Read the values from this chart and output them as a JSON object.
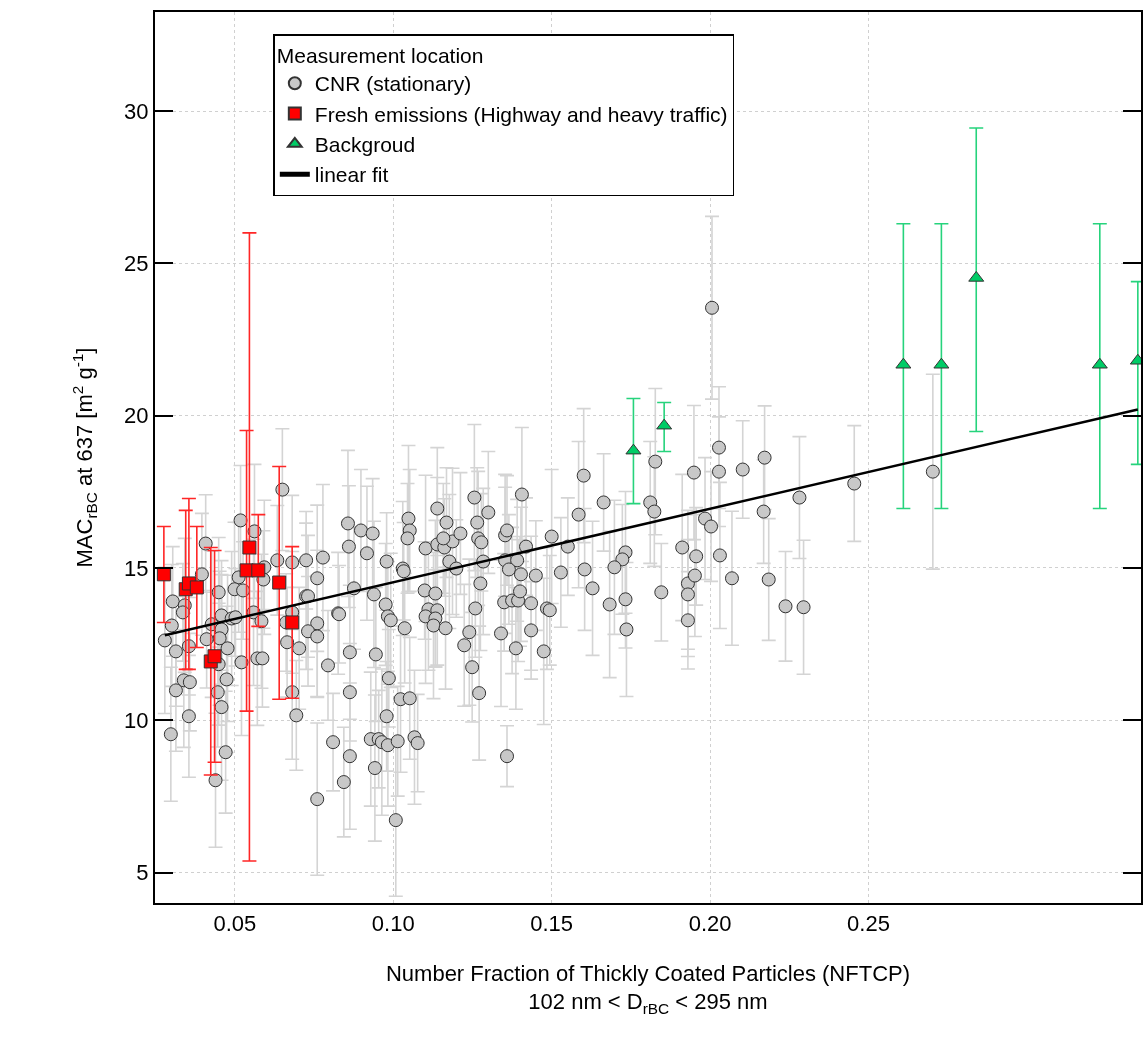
{
  "chart_data": {
    "type": "scatter",
    "xlabel": "Number Fraction of Thickly Coated Particles (NFTCP)\n102 nm < D$_{rBC}$ < 295 nm",
    "ylabel": "MAC$_{rBC}$ at 637 [m$^{2}$ g$^{-1}$]",
    "legend_title": "Measurement location",
    "xlim": [
      0.0248,
      0.336
    ],
    "ylim": [
      4.0,
      33.25
    ],
    "xticks": [
      {
        "value": 0.05,
        "label": "0.05"
      },
      {
        "value": 0.1,
        "label": "0.10"
      },
      {
        "value": 0.15,
        "label": "0.15"
      },
      {
        "value": 0.2,
        "label": "0.20"
      },
      {
        "value": 0.25,
        "label": "0.25"
      }
    ],
    "yticks": [
      5,
      10,
      15,
      20,
      25,
      30
    ],
    "grid": true,
    "legend": "top left",
    "series": [
      {
        "name": "CNR (stationary)",
        "marker": "circle",
        "color": "#c8c8c8",
        "x": [
          0.065,
          0.0518,
          0.0562,
          0.0408,
          0.0857,
          0.086,
          0.0634,
          0.0681,
          0.0725,
          0.0778,
          0.0396,
          0.0512,
          0.0593,
          0.059,
          0.076,
          0.0876,
          0.0449,
          0.0499,
          0.0526,
          0.0725,
          0.0731,
          0.0304,
          0.0342,
          0.0336,
          0.0559,
          0.0681,
          0.0458,
          0.049,
          0.0502,
          0.0427,
          0.0301,
          0.0458,
          0.0584,
          0.0662,
          0.076,
          0.0826,
          0.0731,
          0.0452,
          0.0411,
          0.0279,
          0.076,
          0.0665,
          0.0863,
          0.0355,
          0.0477,
          0.0703,
          0.0314,
          0.0571,
          0.0587,
          0.0521,
          0.0449,
          0.0794,
          0.0339,
          0.0358,
          0.0474,
          0.0314,
          0.0446,
          0.0681,
          0.0863,
          0.0458,
          0.0355,
          0.0694,
          0.0298,
          0.081,
          0.0863,
          0.0471,
          0.0844,
          0.0439,
          0.076,
          0.0898,
          0.0935,
          0.0917,
          0.0979,
          0.1048,
          0.1052,
          0.1045,
          0.103,
          0.1033,
          0.1102,
          0.1139,
          0.1168,
          0.1139,
          0.1161,
          0.1187,
          0.1212,
          0.1158,
          0.1177,
          0.1199,
          0.1256,
          0.13,
          0.1265,
          0.1268,
          0.1278,
          0.1284,
          0.1353,
          0.1359,
          0.1406,
          0.1419,
          0.1353,
          0.1391,
          0.1365,
          0.1403,
          0.0829,
          0.0939,
          0.0976,
          0.0983,
          0.0992,
          0.1099,
          0.1133,
          0.1111,
          0.1139,
          0.1102,
          0.1133,
          0.1127,
          0.1165,
          0.1036,
          0.1275,
          0.1259,
          0.124,
          0.1224,
          0.1249,
          0.1271,
          0.135,
          0.1375,
          0.1394,
          0.14,
          0.1435,
          0.1435,
          0.134,
          0.1387,
          0.145,
          0.0945,
          0.0986,
          0.1023,
          0.1052,
          0.0979,
          0.0929,
          0.0954,
          0.0964,
          0.0983,
          0.1014,
          0.1067,
          0.1077,
          0.0942,
          0.1008,
          0.1359,
          0.2006,
          0.2028,
          0.2028,
          0.1949,
          0.2103,
          0.1827,
          0.1811,
          0.1824,
          0.1601,
          0.1664,
          0.1585,
          0.1984,
          0.2003,
          0.15,
          0.1551,
          0.1912,
          0.1733,
          0.1723,
          0.1698,
          0.1956,
          0.2031,
          0.1604,
          0.1529,
          0.1629,
          0.1846,
          0.193,
          0.1952,
          0.193,
          0.2069,
          0.1733,
          0.1683,
          0.1485,
          0.1494,
          0.1736,
          0.193,
          0.1475,
          0.2172,
          0.2169,
          0.2282,
          0.2455,
          0.2703,
          0.2185,
          0.2238,
          0.2295
        ],
        "values": [
          17.57,
          16.56,
          16.2,
          15.8,
          16.46,
          15.7,
          15.25,
          15.18,
          15.25,
          15.34,
          14.79,
          14.69,
          15.02,
          14.62,
          14.66,
          14.33,
          14.2,
          14.3,
          14.26,
          14.07,
          14.07,
          13.9,
          13.77,
          13.54,
          13.54,
          13.54,
          13.44,
          13.34,
          13.38,
          13.15,
          13.11,
          12.98,
          13.25,
          13.21,
          13.18,
          13.51,
          12.92,
          12.69,
          12.66,
          12.62,
          12.75,
          12.56,
          12.23,
          12.43,
          12.36,
          12.36,
          12.26,
          12.03,
          12.03,
          11.9,
          11.84,
          11.8,
          11.31,
          11.25,
          11.34,
          10.98,
          10.92,
          10.92,
          10.92,
          10.43,
          10.13,
          10.16,
          9.54,
          9.28,
          8.82,
          8.95,
          7.97,
          8.03,
          7.41,
          16.23,
          16.13,
          15.48,
          15.21,
          16.62,
          16.23,
          15.97,
          14.98,
          14.89,
          15.64,
          16.95,
          16.49,
          15.77,
          15.67,
          15.87,
          16.13,
          15.97,
          15.21,
          14.98,
          17.31,
          16.82,
          16.49,
          15.97,
          15.84,
          15.21,
          16.07,
          16.23,
          17.41,
          15.7,
          15.25,
          15.25,
          14.95,
          14.79,
          13.48,
          14.13,
          13.8,
          13.41,
          13.28,
          14.26,
          14.16,
          13.64,
          13.61,
          13.41,
          13.34,
          13.11,
          13.02,
          13.02,
          14.49,
          13.67,
          12.89,
          12.46,
          11.74,
          10.89,
          13.87,
          13.93,
          13.93,
          14.23,
          13.84,
          12.95,
          12.85,
          12.36,
          14.75,
          12.16,
          11.38,
          10.69,
          10.72,
          10.13,
          9.38,
          9.38,
          9.28,
          9.18,
          9.31,
          9.44,
          9.25,
          8.43,
          6.72,
          8.82,
          23.54,
          18.95,
          18.16,
          18.13,
          18.23,
          18.49,
          17.15,
          16.85,
          18.03,
          17.15,
          16.75,
          16.62,
          16.36,
          16.03,
          15.7,
          15.67,
          15.51,
          15.28,
          15.02,
          15.38,
          15.41,
          14.95,
          14.85,
          14.33,
          14.2,
          14.49,
          14.75,
          14.13,
          14.66,
          13.97,
          13.8,
          13.67,
          13.61,
          12.98,
          13.28,
          12.26,
          18.62,
          16.85,
          17.31,
          17.77,
          18.16,
          14.62,
          13.74,
          13.71
        ],
        "errors": [
          2,
          1.8,
          2.2,
          1.6,
          2.4,
          2,
          1.8,
          2.2,
          1.6,
          2.4,
          2,
          1.8,
          2.2,
          1.6,
          2.4,
          2,
          1.8,
          2.2,
          1.6,
          2.4,
          2,
          1.8,
          2.2,
          1.6,
          2.4,
          2,
          1.8,
          2.2,
          1.6,
          2.4,
          2,
          1.8,
          2.2,
          1.6,
          2.4,
          2,
          1.8,
          2.2,
          1.6,
          2.4,
          2,
          1.8,
          2.2,
          1.6,
          2.4,
          2,
          1.8,
          2.2,
          1.6,
          2.4,
          2,
          1.8,
          2.2,
          1.6,
          2.4,
          2,
          1.8,
          2.2,
          1.6,
          2.4,
          2,
          1.8,
          2.2,
          1.6,
          2.4,
          2,
          1.8,
          2.2,
          2.5,
          2,
          1.8,
          2.2,
          1.6,
          2.4,
          2,
          1.8,
          2.2,
          1.6,
          2.4,
          2,
          1.8,
          2.2,
          1.6,
          2.4,
          2,
          1.8,
          2.2,
          1.6,
          2.4,
          2,
          1.8,
          2.2,
          1.6,
          2.4,
          2,
          1.8,
          2.2,
          1.6,
          2.4,
          2,
          1.8,
          2.2,
          1.6,
          2.4,
          2,
          1.8,
          2.2,
          1.6,
          2.4,
          2,
          1.8,
          2.2,
          1.6,
          2.4,
          2,
          1.8,
          2.2,
          1.6,
          2.4,
          2,
          1.8,
          2.2,
          1.6,
          2.4,
          2,
          1.8,
          2.2,
          1.6,
          2.4,
          2,
          1.8,
          2.2,
          1.6,
          2.4,
          2,
          1.8,
          2.2,
          1.6,
          2.4,
          2,
          1.8,
          2.2,
          1.6,
          2.4,
          2.5,
          1,
          3,
          2,
          1.8,
          2.2,
          1.6,
          2.4,
          2,
          1.8,
          2.2,
          1.6,
          2.4,
          2,
          1.8,
          2.2,
          1.6,
          2.4,
          2,
          1.8,
          2.2,
          1.6,
          2.4,
          2,
          1.8,
          2.2,
          1.6,
          2.4,
          2,
          1.8,
          2.2,
          1.6,
          2.4,
          2,
          1.8,
          2.2,
          1.6,
          2.4,
          1.7,
          1.7,
          2,
          1.9,
          3.2,
          2,
          1.8,
          2.2
        ]
      },
      {
        "name": "Fresh emissions (Highway and heavy traffic)",
        "marker": "square",
        "color": "#ff0000",
        "x": [
          0.0276,
          0.0345,
          0.0355,
          0.038,
          0.0424,
          0.0436,
          0.0546,
          0.0537,
          0.0574,
          0.064,
          0.0681
        ],
        "values": [
          14.79,
          14.3,
          14.49,
          14.36,
          11.93,
          12.1,
          15.67,
          14.92,
          14.92,
          14.52,
          13.21
        ],
        "errors": [
          [
            13.21,
            16.36
          ],
          [
            11.67,
            16.89
          ],
          [
            11.67,
            17.28
          ],
          [
            12.39,
            16.36
          ],
          [
            8.2,
            15.67
          ],
          [
            8.62,
            15.57
          ],
          [
            5.38,
            26.0
          ],
          [
            10.3,
            19.51
          ],
          [
            13.08,
            16.75
          ],
          [
            10.69,
            18.33
          ],
          [
            10.72,
            15.7
          ]
        ]
      },
      {
        "name": "Backgroud",
        "marker": "triangle",
        "color": "#00cc66",
        "x": [
          0.1758,
          0.1855,
          0.261,
          0.273,
          0.284,
          0.323,
          0.335
        ],
        "values": [
          18.85,
          19.67,
          21.67,
          21.67,
          24.52,
          21.67,
          21.8
        ],
        "errors": [
          [
            17.11,
            20.56
          ],
          [
            18.82,
            20.43
          ],
          [
            16.95,
            26.3
          ],
          [
            16.95,
            26.3
          ],
          [
            19.48,
            29.44
          ],
          [
            16.95,
            26.3
          ],
          [
            18.4,
            24.4
          ]
        ]
      },
      {
        "name": "linear fit",
        "type": "line",
        "marker": "none",
        "line_style": "solid",
        "color": "#000000",
        "x": [
          0.0279,
          0.335
        ],
        "values": [
          12.79,
          20.2
        ]
      }
    ]
  }
}
